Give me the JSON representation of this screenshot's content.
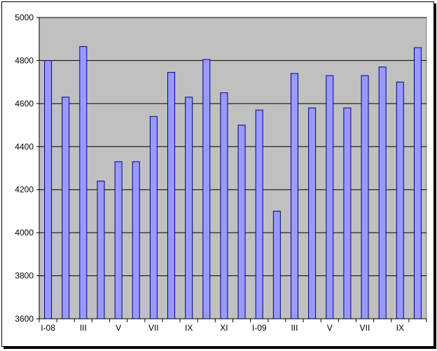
{
  "chart_data": {
    "type": "bar",
    "categories": [
      "I-08",
      "",
      "III",
      "",
      "V",
      "",
      "VII",
      "",
      "IX",
      "",
      "XI",
      "",
      "I-09",
      "",
      "III",
      "",
      "V",
      "",
      "VII",
      "",
      "IX",
      ""
    ],
    "values": [
      4800,
      4630,
      4865,
      4240,
      4330,
      4330,
      4540,
      4745,
      4630,
      4805,
      4650,
      4500,
      4570,
      4100,
      4740,
      4580,
      4730,
      4580,
      4730,
      4770,
      4700,
      4860
    ],
    "ylim": [
      3600,
      5000
    ],
    "yticks": [
      3600,
      3800,
      4000,
      4200,
      4400,
      4600,
      4800,
      5000
    ],
    "ytick_labels": [
      "3600",
      "3800",
      "4000",
      "4200",
      "4400",
      "4600",
      "4800",
      "5000"
    ],
    "grid": true,
    "colors": {
      "bar_fill": "#9999ff",
      "bar_stroke": "#000080",
      "plot_bg": "#c0c0c0"
    }
  }
}
